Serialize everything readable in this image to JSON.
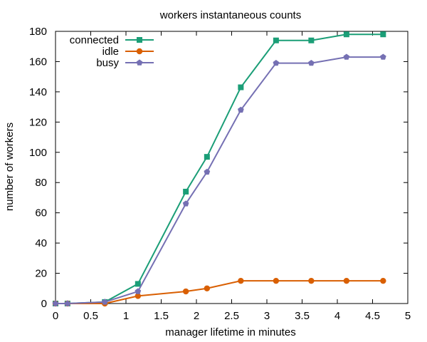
{
  "chart_data": {
    "type": "line",
    "title": "workers instantaneous counts",
    "xlabel": "manager lifetime in minutes",
    "ylabel": "number of workers",
    "xlim": [
      0,
      5
    ],
    "ylim": [
      0,
      180
    ],
    "x_ticks": [
      "0",
      "0.5",
      "1",
      "1.5",
      "2",
      "2.5",
      "3",
      "3.5",
      "4",
      "4.5",
      "5"
    ],
    "y_ticks": [
      "0",
      "20",
      "40",
      "60",
      "80",
      "100",
      "120",
      "140",
      "160",
      "180"
    ],
    "legend_position": "top-left",
    "grid": false,
    "series": [
      {
        "name": "connected",
        "color": "#1b9e77",
        "marker": "square",
        "x": [
          0,
          0.17,
          0.7,
          1.17,
          1.85,
          2.15,
          2.63,
          3.13,
          3.63,
          4.13,
          4.65
        ],
        "y": [
          0,
          0,
          1,
          13,
          74,
          97,
          143,
          174,
          174,
          178,
          178
        ]
      },
      {
        "name": "idle",
        "color": "#d95f02",
        "marker": "circle",
        "x": [
          0,
          0.17,
          0.7,
          1.17,
          1.85,
          2.15,
          2.63,
          3.13,
          3.63,
          4.13,
          4.65
        ],
        "y": [
          0,
          0,
          0,
          5,
          8,
          10,
          15,
          15,
          15,
          15,
          15
        ]
      },
      {
        "name": "busy",
        "color": "#7570b3",
        "marker": "pentagon",
        "x": [
          0,
          0.17,
          0.7,
          1.17,
          1.85,
          2.15,
          2.63,
          3.13,
          3.63,
          4.13,
          4.65
        ],
        "y": [
          0,
          0,
          1,
          8,
          66,
          87,
          128,
          159,
          159,
          163,
          163
        ]
      }
    ]
  }
}
